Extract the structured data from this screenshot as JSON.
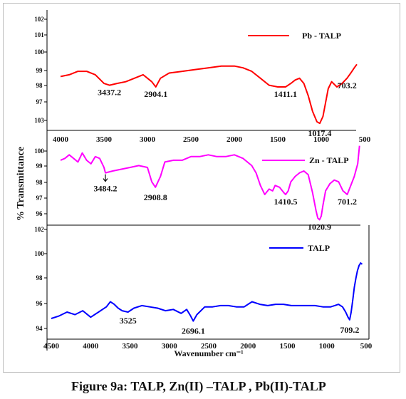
{
  "caption": "Figure 9a: TALP, Zn(II) –TALP , Pb(II)-TALP",
  "chart_data": {
    "type": "line",
    "ylabel": "% Transmittance",
    "xlabel": "Wavenumber cm⁻¹",
    "panels": [
      {
        "id": "pb",
        "name": "Pb - TALP",
        "color": "#ff0000",
        "xlim": [
          4000,
          500
        ],
        "ylim": [
          95.8,
          102.4
        ],
        "yticks": [
          "102",
          "101",
          "100",
          "99",
          "98",
          "97",
          "103"
        ],
        "xticks": [
          "4000",
          "3500",
          "3000",
          "2500",
          "2000",
          "1500",
          "1000",
          "500"
        ],
        "x": [
          4000,
          3900,
          3800,
          3700,
          3600,
          3500,
          3437,
          3350,
          3250,
          3150,
          3050,
          2950,
          2904,
          2850,
          2750,
          2600,
          2450,
          2300,
          2150,
          2000,
          1900,
          1800,
          1700,
          1600,
          1500,
          1450,
          1411,
          1350,
          1300,
          1250,
          1200,
          1150,
          1100,
          1050,
          1017,
          980,
          950,
          920,
          880,
          820,
          760,
          703,
          660,
          620,
          590
        ],
        "values": [
          98.9,
          99.0,
          99.2,
          99.2,
          99.0,
          98.5,
          98.4,
          98.5,
          98.6,
          98.8,
          99.0,
          98.6,
          98.3,
          98.8,
          99.1,
          99.2,
          99.3,
          99.4,
          99.5,
          99.5,
          99.4,
          99.2,
          98.8,
          98.4,
          98.3,
          98.3,
          98.3,
          98.5,
          98.7,
          98.8,
          98.5,
          97.8,
          96.9,
          96.3,
          96.2,
          96.6,
          97.4,
          98.2,
          98.6,
          98.3,
          98.5,
          98.8,
          99.1,
          99.4,
          99.6
        ],
        "annotations": [
          {
            "label": "3437.2",
            "x": 3437,
            "y": 98.4
          },
          {
            "label": "2904.1",
            "x": 2904,
            "y": 98.3
          },
          {
            "label": "1411.1",
            "x": 1411,
            "y": 98.3
          },
          {
            "label": "1017.4",
            "x": 1017,
            "y": 96.2
          },
          {
            "label": "703.2",
            "x": 703,
            "y": 98.8
          }
        ]
      },
      {
        "id": "zn",
        "name": "Zn - TALP",
        "color": "#ff00ff",
        "xlim": [
          4000,
          500
        ],
        "ylim": [
          95.6,
          100.3
        ],
        "yticks": [
          "100",
          "99",
          "98",
          "97",
          "96"
        ],
        "xticks": [],
        "x": [
          4000,
          3950,
          3900,
          3850,
          3800,
          3750,
          3700,
          3650,
          3600,
          3550,
          3500,
          3484,
          3400,
          3300,
          3200,
          3100,
          3000,
          2950,
          2908,
          2850,
          2800,
          2700,
          2600,
          2500,
          2400,
          2300,
          2200,
          2100,
          2000,
          1950,
          1900,
          1850,
          1800,
          1750,
          1700,
          1650,
          1600,
          1560,
          1530,
          1480,
          1430,
          1410,
          1380,
          1350,
          1300,
          1250,
          1200,
          1150,
          1100,
          1060,
          1040,
          1020,
          1000,
          980,
          950,
          900,
          850,
          800,
          750,
          701,
          660,
          620,
          580,
          560
        ],
        "values": [
          99.2,
          99.3,
          99.5,
          99.3,
          99.1,
          99.6,
          99.2,
          99.0,
          99.4,
          99.3,
          98.8,
          98.5,
          98.6,
          98.7,
          98.8,
          98.9,
          98.8,
          98.0,
          97.7,
          98.3,
          99.1,
          99.2,
          99.2,
          99.4,
          99.4,
          99.5,
          99.4,
          99.4,
          99.5,
          99.4,
          99.3,
          99.1,
          98.9,
          98.5,
          97.8,
          97.3,
          97.6,
          97.5,
          97.8,
          97.7,
          97.4,
          97.3,
          97.5,
          98.0,
          98.3,
          98.5,
          98.6,
          98.4,
          97.4,
          96.4,
          96.0,
          95.9,
          96.1,
          96.7,
          97.5,
          97.9,
          98.1,
          98.0,
          97.5,
          97.3,
          97.8,
          98.3,
          99.0,
          100.0
        ],
        "annotations": [
          {
            "label": "3484.2",
            "x": 3484,
            "y": 98.5
          },
          {
            "label": "2908.8",
            "x": 2908,
            "y": 97.7
          },
          {
            "label": "1410.5",
            "x": 1410,
            "y": 97.3
          },
          {
            "label": "1020.9",
            "x": 1020,
            "y": 95.9
          },
          {
            "label": "701.2",
            "x": 701,
            "y": 97.3
          }
        ]
      },
      {
        "id": "talp",
        "name": "TALP",
        "color": "#0000ff",
        "xlim": [
          4500,
          500
        ],
        "ylim": [
          93.5,
          102.0
        ],
        "yticks": [
          "102",
          "100",
          "98",
          "96",
          "94"
        ],
        "xticks": [
          "4500",
          "4000",
          "3500",
          "3000",
          "2500",
          "2000",
          "1500",
          "1000",
          "500"
        ],
        "x": [
          4500,
          4400,
          4300,
          4200,
          4100,
          4000,
          3900,
          3800,
          3750,
          3700,
          3650,
          3600,
          3525,
          3450,
          3350,
          3250,
          3150,
          3050,
          2950,
          2850,
          2780,
          2730,
          2696,
          2650,
          2550,
          2450,
          2350,
          2250,
          2150,
          2050,
          1950,
          1850,
          1750,
          1650,
          1550,
          1450,
          1350,
          1250,
          1150,
          1050,
          950,
          900,
          850,
          800,
          760,
          730,
          709,
          690,
          670,
          650,
          630,
          610,
          590,
          570,
          550
        ],
        "values": [
          95.1,
          95.3,
          95.6,
          95.4,
          95.7,
          95.2,
          95.6,
          96.0,
          96.4,
          96.2,
          95.9,
          95.7,
          95.6,
          95.9,
          96.1,
          96.0,
          95.9,
          95.7,
          95.8,
          95.5,
          95.8,
          95.3,
          94.9,
          95.4,
          96.0,
          96.0,
          96.1,
          96.1,
          96.0,
          96.0,
          96.4,
          96.2,
          96.1,
          96.2,
          96.2,
          96.1,
          96.1,
          96.1,
          96.1,
          96.0,
          96.0,
          96.1,
          96.2,
          96.0,
          95.6,
          95.2,
          95.0,
          95.6,
          96.5,
          97.5,
          98.2,
          98.8,
          99.2,
          99.4,
          99.3
        ],
        "annotations": [
          {
            "label": "3525",
            "x": 3525,
            "y": 95.6
          },
          {
            "label": "2696.1",
            "x": 2696,
            "y": 94.9
          },
          {
            "label": "709.2",
            "x": 709,
            "y": 95.0
          }
        ]
      }
    ]
  }
}
